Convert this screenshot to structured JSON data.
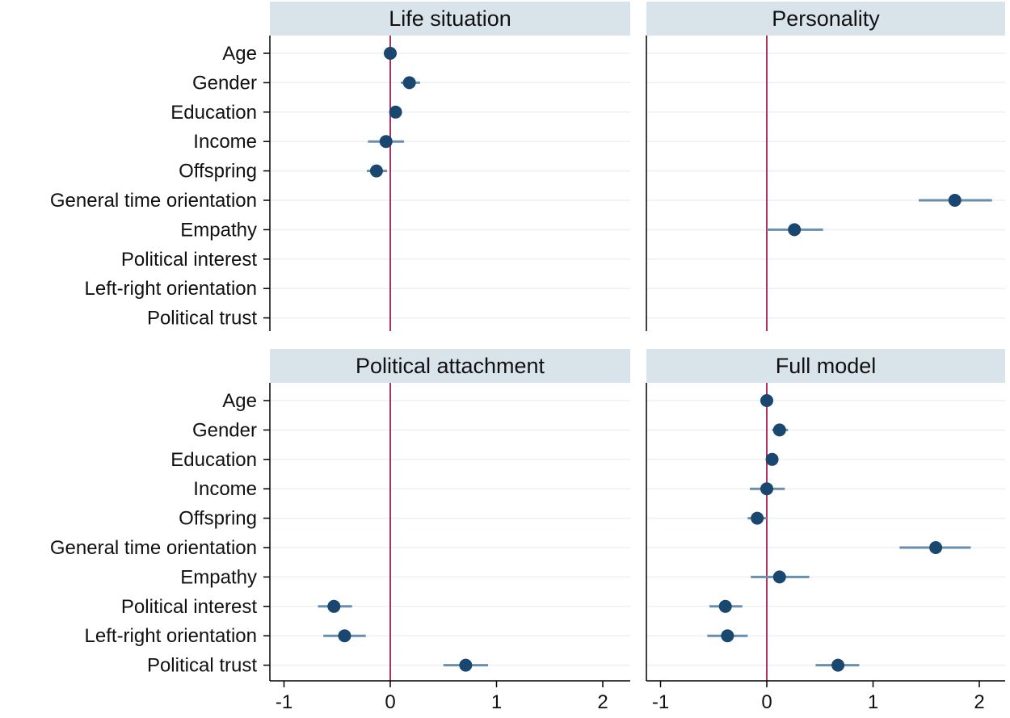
{
  "chart_data": {
    "type": "coefficient_plot",
    "variables": [
      "Age",
      "Gender",
      "Education",
      "Income",
      "Offspring",
      "General time orientation",
      "Empathy",
      "Political interest",
      "Left-right orientation",
      "Political trust"
    ],
    "x_ticks": [
      -1,
      0,
      1,
      2
    ],
    "x_tick_labels": [
      "-1",
      "0",
      "1",
      "2"
    ],
    "xlim": [
      -1.1,
      2.27
    ],
    "reference_line": 0,
    "colors": {
      "strip": "#d9e4ea",
      "point": "#1a476f",
      "ci": "#6a8eae",
      "reference": "#b03060",
      "grid": "#eaf0f3",
      "axis": "#000000"
    },
    "panels": [
      {
        "title": "Life situation",
        "coefficients": [
          {
            "variable": "Age",
            "estimate": 0.0,
            "ci_low": -0.02,
            "ci_high": 0.02
          },
          {
            "variable": "Gender",
            "estimate": 0.18,
            "ci_low": 0.1,
            "ci_high": 0.28
          },
          {
            "variable": "Education",
            "estimate": 0.05,
            "ci_low": 0.02,
            "ci_high": 0.08
          },
          {
            "variable": "Income",
            "estimate": -0.04,
            "ci_low": -0.21,
            "ci_high": 0.13
          },
          {
            "variable": "Offspring",
            "estimate": -0.13,
            "ci_low": -0.22,
            "ci_high": -0.03
          }
        ]
      },
      {
        "title": "Personality",
        "coefficients": [
          {
            "variable": "General time orientation",
            "estimate": 1.77,
            "ci_low": 1.43,
            "ci_high": 2.12
          },
          {
            "variable": "Empathy",
            "estimate": 0.26,
            "ci_low": 0.0,
            "ci_high": 0.53
          }
        ]
      },
      {
        "title": "Political attachment",
        "coefficients": [
          {
            "variable": "Political interest",
            "estimate": -0.53,
            "ci_low": -0.68,
            "ci_high": -0.36
          },
          {
            "variable": "Left-right orientation",
            "estimate": -0.43,
            "ci_low": -0.63,
            "ci_high": -0.23
          },
          {
            "variable": "Political trust",
            "estimate": 0.71,
            "ci_low": 0.5,
            "ci_high": 0.92
          }
        ]
      },
      {
        "title": "Full model",
        "coefficients": [
          {
            "variable": "Age",
            "estimate": 0.0,
            "ci_low": -0.02,
            "ci_high": 0.02
          },
          {
            "variable": "Gender",
            "estimate": 0.12,
            "ci_low": 0.05,
            "ci_high": 0.2
          },
          {
            "variable": "Education",
            "estimate": 0.05,
            "ci_low": 0.02,
            "ci_high": 0.08
          },
          {
            "variable": "Income",
            "estimate": 0.0,
            "ci_low": -0.16,
            "ci_high": 0.17
          },
          {
            "variable": "Offspring",
            "estimate": -0.09,
            "ci_low": -0.18,
            "ci_high": 0.0
          },
          {
            "variable": "General time orientation",
            "estimate": 1.59,
            "ci_low": 1.25,
            "ci_high": 1.92
          },
          {
            "variable": "Empathy",
            "estimate": 0.12,
            "ci_low": -0.15,
            "ci_high": 0.4
          },
          {
            "variable": "Political interest",
            "estimate": -0.39,
            "ci_low": -0.54,
            "ci_high": -0.23
          },
          {
            "variable": "Left-right orientation",
            "estimate": -0.37,
            "ci_low": -0.56,
            "ci_high": -0.18
          },
          {
            "variable": "Political trust",
            "estimate": 0.67,
            "ci_low": 0.46,
            "ci_high": 0.87
          }
        ]
      }
    ]
  }
}
